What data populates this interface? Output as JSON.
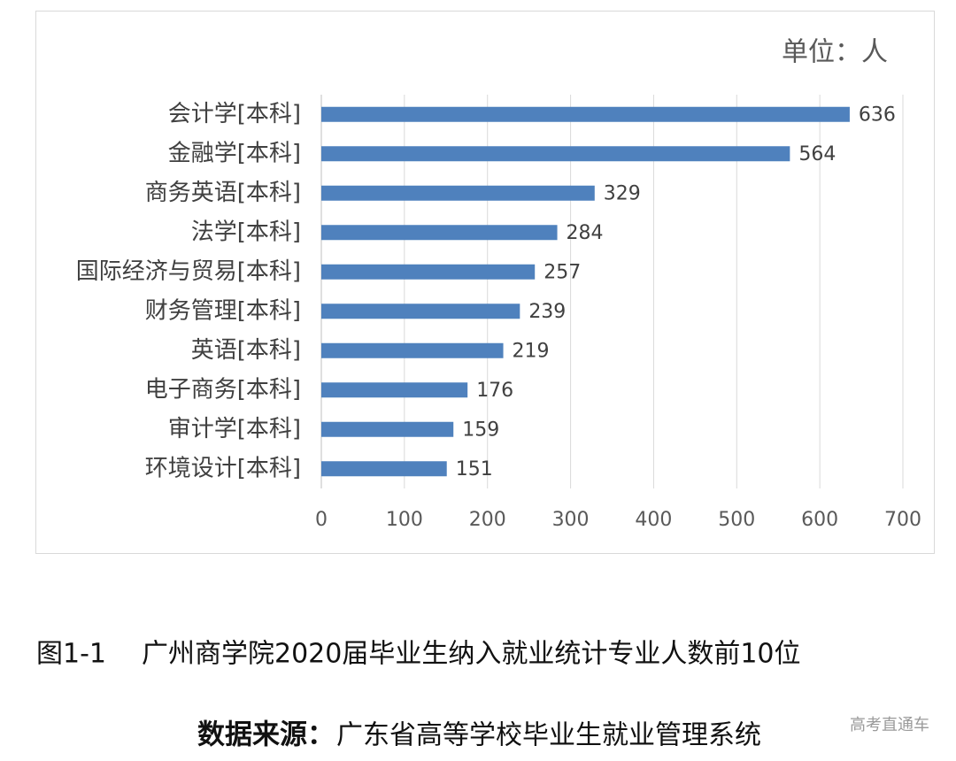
{
  "chart_data": {
    "type": "bar",
    "orientation": "horizontal",
    "unit_label": "单位：人",
    "categories": [
      "会计学[本科]",
      "金融学[本科]",
      "商务英语[本科]",
      "法学[本科]",
      "国际经济与贸易[本科]",
      "财务管理[本科]",
      "英语[本科]",
      "电子商务[本科]",
      "审计学[本科]",
      "环境设计[本科]"
    ],
    "values": [
      636,
      564,
      329,
      284,
      257,
      239,
      219,
      176,
      159,
      151
    ],
    "color": "#4f81bd",
    "xlim": [
      0,
      700
    ],
    "xticks": [
      0,
      100,
      200,
      300,
      400,
      500,
      600,
      700
    ],
    "grid": true
  },
  "caption": {
    "figure_number": "图1-1",
    "title": "广州商学院2020届毕业生纳入就业统计专业人数前10位"
  },
  "source": {
    "label": "数据来源：",
    "text": "广东省高等学校毕业生就业管理系统"
  },
  "watermark": "高考直通车"
}
